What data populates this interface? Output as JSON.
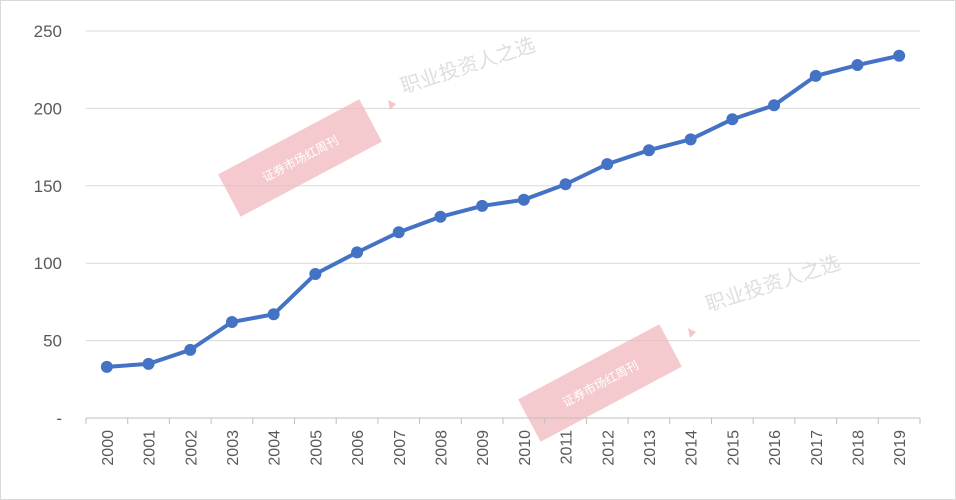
{
  "chart_data": {
    "type": "line",
    "categories": [
      "2000",
      "2001",
      "2002",
      "2003",
      "2004",
      "2005",
      "2006",
      "2007",
      "2008",
      "2009",
      "2010",
      "2011",
      "2012",
      "2013",
      "2014",
      "2015",
      "2016",
      "2017",
      "2018",
      "2019"
    ],
    "series": [
      {
        "values": [
          33,
          35,
          44,
          62,
          67,
          93,
          107,
          120,
          130,
          137,
          141,
          151,
          164,
          173,
          180,
          193,
          202,
          221,
          228,
          234
        ],
        "color": "#4472c4"
      }
    ],
    "y_ticks": [
      "-",
      "50",
      "100",
      "150",
      "200",
      "250"
    ],
    "ylim": [
      0,
      250
    ],
    "grid": true,
    "legend": "none",
    "marker": "circle"
  },
  "watermark": {
    "text": "职业投资人之选",
    "stamp_text": "证券市场红周刊",
    "stamp_color": "#f2b8bd",
    "text_color": "#d9d9d9"
  }
}
